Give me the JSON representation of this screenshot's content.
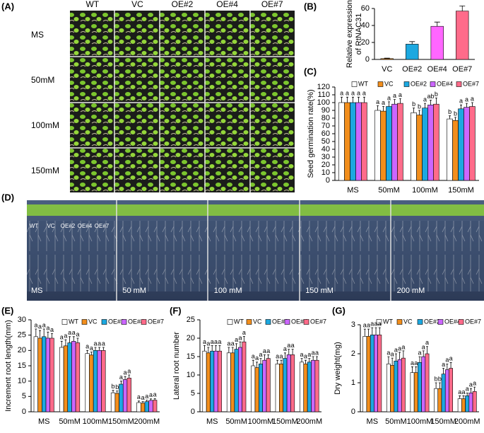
{
  "panel_A": {
    "label": "(A)",
    "columns": [
      "WT",
      "VC",
      "OE#2",
      "OE#4",
      "OE#7"
    ],
    "rows": [
      "MS",
      "50mM",
      "100mM",
      "150mM"
    ]
  },
  "panel_D": {
    "label": "(D)",
    "conditions": [
      "MS",
      "50 mM",
      "100 mM",
      "150 mM",
      "200 mM"
    ],
    "lines": [
      "WT",
      "VC",
      "OE#2",
      "OE#4",
      "OE#7"
    ]
  },
  "chart_data": [
    {
      "type": "bar",
      "panel_label": "(B)",
      "ylabel": [
        "Relative expression",
        "of RtNAC31"
      ],
      "categories": [
        "VC",
        "OE#2",
        "OE#4",
        "OE#7"
      ],
      "values": [
        1,
        18,
        39,
        57
      ],
      "errors": [
        0.5,
        3,
        5,
        6
      ],
      "colors": [
        "#f28e1c",
        "#1ca8e0",
        "#ff66ff",
        "#ff6b8a"
      ],
      "ylim": [
        0,
        60
      ],
      "yticks": [
        0,
        20,
        40,
        60
      ]
    },
    {
      "type": "grouped-bar",
      "panel_label": "(C)",
      "ylabel": "Seed germination rate(%)",
      "categories": [
        "MS",
        "50mM",
        "100mM",
        "150mM"
      ],
      "ylim": [
        0,
        120
      ],
      "yticks": [
        0,
        10,
        20,
        30,
        40,
        50,
        60,
        70,
        80,
        90,
        100,
        110,
        120
      ],
      "series": [
        {
          "name": "WT",
          "color": "#ffffff",
          "values": [
            100,
            90,
            87,
            79
          ],
          "errors": [
            7,
            6,
            6,
            4
          ],
          "letters": [
            "a",
            "a",
            "b",
            "b"
          ]
        },
        {
          "name": "VC",
          "color": "#f28e1c",
          "values": [
            100,
            89,
            84,
            77
          ],
          "errors": [
            7,
            6,
            6,
            4
          ],
          "letters": [
            "a",
            "a",
            "b",
            "b"
          ]
        },
        {
          "name": "OE#2",
          "color": "#1ca8e0",
          "values": [
            100,
            95,
            93,
            92
          ],
          "errors": [
            7,
            6,
            6,
            5
          ],
          "letters": [
            "a",
            "a",
            "a",
            "a"
          ]
        },
        {
          "name": "OE#4",
          "color": "#cc66ff",
          "values": [
            100,
            98,
            97,
            94
          ],
          "errors": [
            7,
            6,
            6,
            5
          ],
          "letters": [
            "a",
            "a",
            "ab",
            "a"
          ]
        },
        {
          "name": "OE#7",
          "color": "#ff6b8a",
          "values": [
            100,
            99,
            98,
            95
          ],
          "errors": [
            7,
            6,
            8,
            5
          ],
          "letters": [
            "a",
            "a",
            "b",
            "a"
          ]
        }
      ]
    },
    {
      "type": "grouped-bar",
      "panel_label": "(E)",
      "ylabel": "Increment root length(mm)",
      "categories": [
        "MS",
        "50mM",
        "100mM",
        "150mM",
        "200mM"
      ],
      "ylim": [
        0,
        30
      ],
      "yticks": [
        0,
        5,
        10,
        15,
        20,
        25,
        30
      ],
      "series": [
        {
          "name": "WT",
          "color": "#ffffff",
          "values": [
            24.5,
            21,
            19,
            6.2,
            3
          ],
          "errors": [
            2.5,
            2,
            1,
            0.8,
            0.5
          ],
          "letters": [
            "a",
            "a",
            "a",
            "b",
            "a"
          ]
        },
        {
          "name": "VC",
          "color": "#f28e1c",
          "values": [
            24,
            21.5,
            18.5,
            6,
            2.8
          ],
          "errors": [
            2.5,
            2,
            1,
            0.8,
            0.5
          ],
          "letters": [
            "a",
            "a",
            "a",
            "b",
            "a"
          ]
        },
        {
          "name": "OE#2",
          "color": "#1ca8e0",
          "values": [
            24.5,
            22.5,
            20,
            9,
            3.3
          ],
          "errors": [
            2.5,
            2,
            1,
            1,
            0.5
          ],
          "letters": [
            "a",
            "a",
            "a",
            "a",
            "a"
          ]
        },
        {
          "name": "OE#4",
          "color": "#cc66ff",
          "values": [
            24,
            23,
            20,
            10.5,
            3.7
          ],
          "errors": [
            2,
            1.5,
            1,
            1,
            0.5
          ],
          "letters": [
            "a",
            "a",
            "a",
            "a",
            "a"
          ]
        },
        {
          "name": "OE#7",
          "color": "#ff6b8a",
          "values": [
            24,
            22.5,
            20,
            11,
            3.8
          ],
          "errors": [
            1.5,
            1.5,
            1,
            1,
            0.5
          ],
          "letters": [
            "a",
            "a",
            "a",
            "a",
            "a"
          ]
        }
      ]
    },
    {
      "type": "grouped-bar",
      "panel_label": "(F)",
      "ylabel": "Lateral root number",
      "categories": [
        "MS",
        "50mM",
        "100mM",
        "150mM",
        "200mM"
      ],
      "ylim": [
        0,
        25
      ],
      "yticks": [
        0,
        5,
        10,
        15,
        20,
        25
      ],
      "series": [
        {
          "name": "WT",
          "color": "#ffffff",
          "values": [
            16.5,
            16,
            12.5,
            13,
            13.5
          ],
          "errors": [
            1.5,
            1.5,
            1.5,
            1,
            1
          ],
          "letters": [
            "a",
            "a",
            "a",
            "a",
            "a"
          ]
        },
        {
          "name": "VC",
          "color": "#f28e1c",
          "values": [
            16,
            16,
            12,
            13,
            13
          ],
          "errors": [
            1.5,
            1.5,
            1.5,
            1,
            1
          ],
          "letters": [
            "a",
            "a",
            "a",
            "a",
            "a"
          ]
        },
        {
          "name": "OE#2",
          "color": "#1ca8e0",
          "values": [
            16.5,
            17,
            13,
            14.5,
            13.5
          ],
          "errors": [
            1.5,
            1.5,
            1.5,
            1.5,
            1
          ],
          "letters": [
            "a",
            "a",
            "a",
            "a",
            "a"
          ]
        },
        {
          "name": "OE#4",
          "color": "#cc66ff",
          "values": [
            16.5,
            17.5,
            14,
            15.5,
            14
          ],
          "errors": [
            1.5,
            1.5,
            1.5,
            1.5,
            1
          ],
          "letters": [
            "a",
            "a",
            "a",
            "a",
            "a"
          ]
        },
        {
          "name": "OE#7",
          "color": "#ff6b8a",
          "values": [
            16.5,
            19,
            14.5,
            15.5,
            14
          ],
          "errors": [
            1.5,
            1.5,
            1,
            1.5,
            1
          ],
          "letters": [
            "a",
            "a",
            "a",
            "a",
            "a"
          ]
        }
      ]
    },
    {
      "type": "grouped-bar",
      "panel_label": "(G)",
      "ylabel": "Dry weight(mg)",
      "categories": [
        "MS",
        "50mM",
        "100mM",
        "150mM",
        "200mM"
      ],
      "ylim": [
        0,
        3
      ],
      "yticks": [
        0,
        1,
        2,
        3
      ],
      "series": [
        {
          "name": "WT",
          "color": "#ffffff",
          "values": [
            2.6,
            1.65,
            1.35,
            0.8,
            0.45
          ],
          "errors": [
            0.25,
            0.25,
            0.2,
            0.2,
            0.1
          ],
          "letters": [
            "a",
            "a",
            "a",
            "b",
            "a"
          ]
        },
        {
          "name": "VC",
          "color": "#f28e1c",
          "values": [
            2.6,
            1.6,
            1.35,
            0.8,
            0.45
          ],
          "errors": [
            0.25,
            0.25,
            0.2,
            0.2,
            0.1
          ],
          "letters": [
            "a",
            "a",
            "a",
            "b",
            "a"
          ]
        },
        {
          "name": "OE#2",
          "color": "#1ca8e0",
          "values": [
            2.65,
            1.75,
            1.7,
            1.3,
            0.55
          ],
          "errors": [
            0.25,
            0.25,
            0.2,
            0.2,
            0.1
          ],
          "letters": [
            "a",
            "a",
            "a",
            "a",
            "a"
          ]
        },
        {
          "name": "OE#4",
          "color": "#cc66ff",
          "values": [
            2.65,
            1.8,
            1.9,
            1.45,
            0.65
          ],
          "errors": [
            0.25,
            0.25,
            0.2,
            0.2,
            0.15
          ],
          "letters": [
            "a",
            "a",
            "a",
            "a",
            "a"
          ]
        },
        {
          "name": "OE#7",
          "color": "#ff6b8a",
          "values": [
            2.65,
            1.85,
            2.0,
            1.5,
            0.7
          ],
          "errors": [
            0.25,
            0.25,
            0.25,
            0.2,
            0.15
          ],
          "letters": [
            "a",
            "a",
            "a",
            "a",
            "a"
          ]
        }
      ]
    }
  ]
}
